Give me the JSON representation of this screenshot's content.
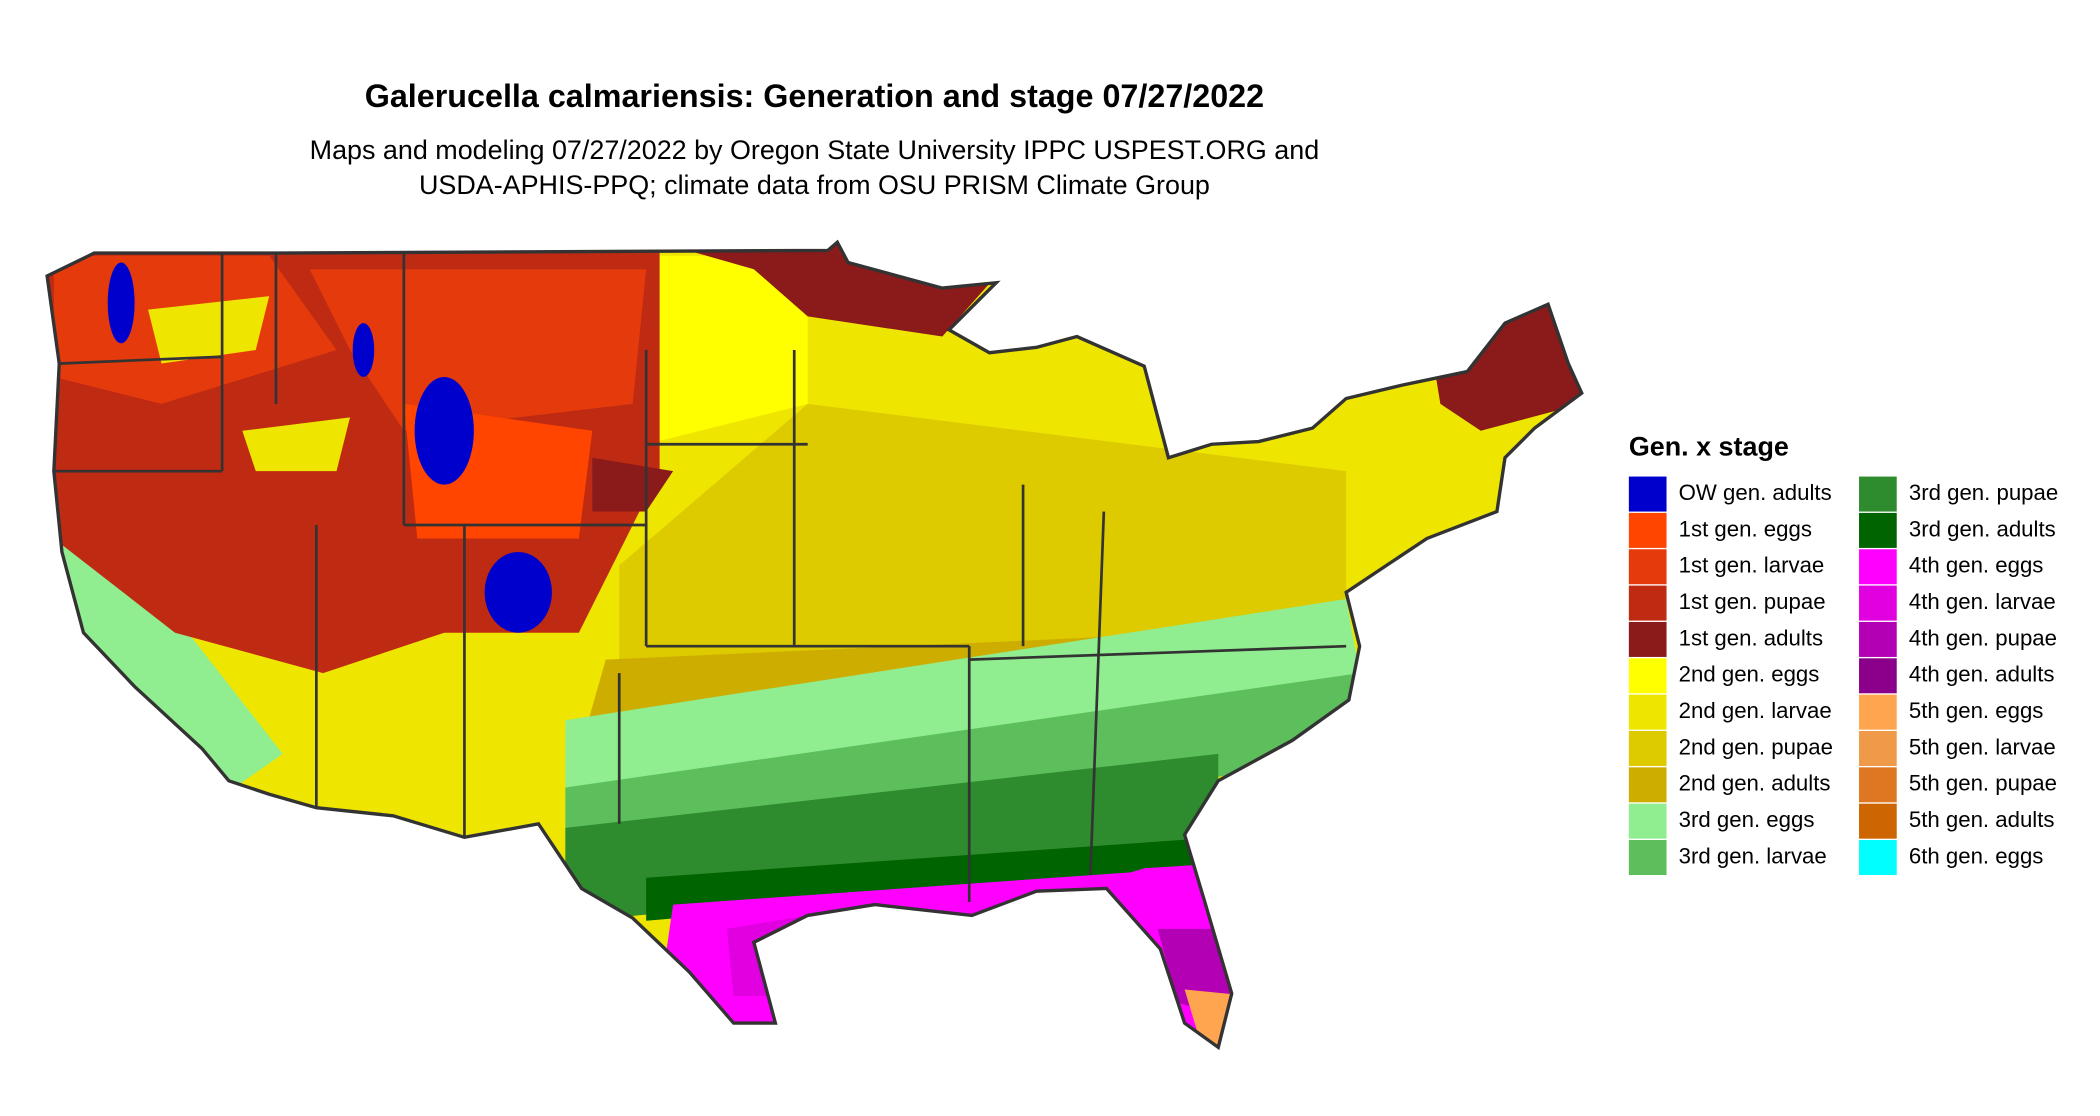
{
  "header": {
    "title": "Galerucella calmariensis: Generation and stage 07/27/2022",
    "subtitle": [
      "Maps and modeling 07/27/2022 by Oregon State University IPPC USPEST.ORG and",
      "USDA-APHIS-PPQ; climate data from OSU PRISM Climate Group"
    ]
  },
  "legend": {
    "title": "Gen. x stage",
    "items": [
      {
        "label": "OW gen. adults",
        "color": "#0000cd"
      },
      {
        "label": "1st gen. eggs",
        "color": "#ff4500"
      },
      {
        "label": "1st gen. larvae",
        "color": "#e43a0c"
      },
      {
        "label": "1st gen. pupae",
        "color": "#bf2a12"
      },
      {
        "label": "1st gen. adults",
        "color": "#8b1a1a"
      },
      {
        "label": "2nd gen. eggs",
        "color": "#ffff00"
      },
      {
        "label": "2nd gen. larvae",
        "color": "#eee600"
      },
      {
        "label": "2nd gen. pupae",
        "color": "#ddcb00"
      },
      {
        "label": "2nd gen. adults",
        "color": "#cdad00"
      },
      {
        "label": "3rd gen. eggs",
        "color": "#90ee90"
      },
      {
        "label": "3rd gen. larvae",
        "color": "#5cbf5c"
      },
      {
        "label": "3rd gen. pupae",
        "color": "#2e8b2e"
      },
      {
        "label": "3rd gen. adults",
        "color": "#006400"
      },
      {
        "label": "4th gen. eggs",
        "color": "#ff00ff"
      },
      {
        "label": "4th gen. larvae",
        "color": "#e000e0"
      },
      {
        "label": "4th gen. pupae",
        "color": "#b400b4"
      },
      {
        "label": "4th gen. adults",
        "color": "#8b008b"
      },
      {
        "label": "5th gen. eggs",
        "color": "#ffa54f"
      },
      {
        "label": "5th gen. larvae",
        "color": "#ee9a49"
      },
      {
        "label": "5th gen. pupae",
        "color": "#dd7722"
      },
      {
        "label": "5th gen. adults",
        "color": "#cd6600"
      },
      {
        "label": "6th gen. eggs",
        "color": "#00ffff"
      }
    ]
  }
}
